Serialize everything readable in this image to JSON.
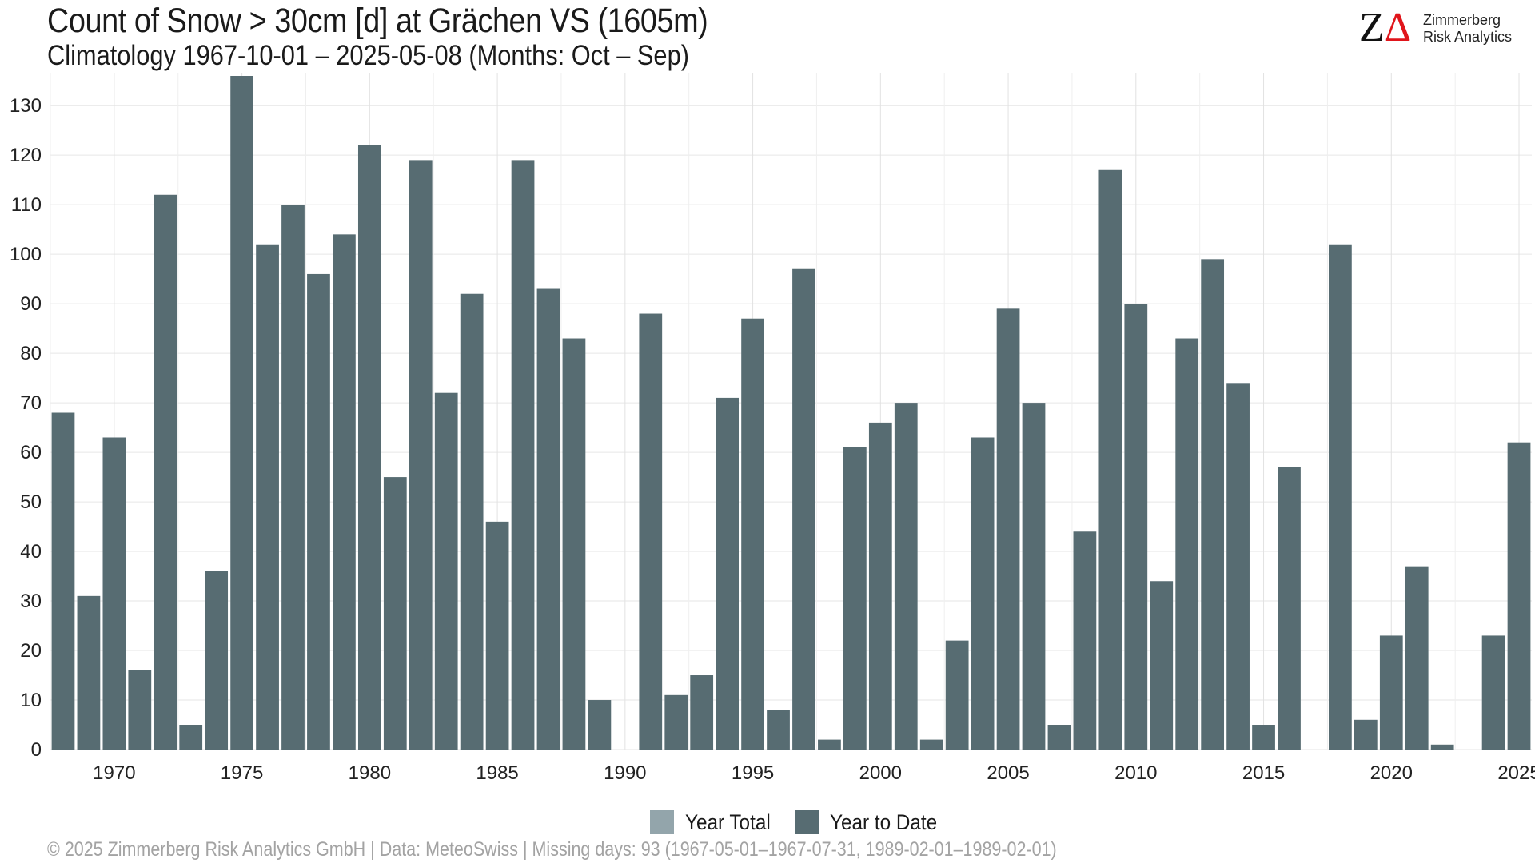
{
  "header": {
    "title": "Count of Snow > 30cm [d] at Grächen  VS (1605m)",
    "subtitle": "Climatology 1967-10-01 – 2025-05-08 (Months: Oct – Sep)"
  },
  "logo": {
    "mark_z": "Z",
    "mark_delta": "Δ",
    "line1": "Zimmerberg",
    "line2": "Risk Analytics"
  },
  "legend": {
    "items": [
      {
        "label": "Year Total",
        "color": "#93a5ab"
      },
      {
        "label": "Year to Date",
        "color": "#576c72"
      }
    ]
  },
  "footer": {
    "text": "©  2025 Zimmerberg Risk Analytics GmbH | Data: MeteoSwiss | Missing days: 93 (1967-05-01–1967-07-31, 1989-02-01–1989-02-01)"
  },
  "chart_data": {
    "type": "bar",
    "title": "Count of Snow > 30cm [d] at Grächen  VS (1605m)",
    "xlabel": "",
    "ylabel": "",
    "x": [
      1968,
      1969,
      1970,
      1971,
      1972,
      1973,
      1974,
      1975,
      1976,
      1977,
      1978,
      1979,
      1980,
      1981,
      1982,
      1983,
      1984,
      1985,
      1986,
      1987,
      1988,
      1989,
      1990,
      1991,
      1992,
      1993,
      1994,
      1995,
      1996,
      1997,
      1998,
      1999,
      2000,
      2001,
      2002,
      2003,
      2004,
      2005,
      2006,
      2007,
      2008,
      2009,
      2010,
      2011,
      2012,
      2013,
      2014,
      2015,
      2016,
      2017,
      2018,
      2019,
      2020,
      2021,
      2022,
      2023,
      2024,
      2025
    ],
    "series": [
      {
        "name": "Year to Date",
        "color": "#576c72",
        "values": [
          68,
          31,
          63,
          16,
          112,
          5,
          36,
          136,
          102,
          110,
          96,
          104,
          122,
          55,
          119,
          72,
          92,
          46,
          119,
          93,
          83,
          10,
          0,
          88,
          11,
          15,
          71,
          87,
          8,
          97,
          2,
          61,
          66,
          70,
          2,
          22,
          63,
          89,
          70,
          5,
          44,
          117,
          90,
          34,
          83,
          99,
          74,
          5,
          57,
          0,
          102,
          6,
          23,
          37,
          1,
          0,
          23,
          62
        ]
      }
    ],
    "x_ticks": [
      1970,
      1975,
      1980,
      1985,
      1990,
      1995,
      2000,
      2005,
      2010,
      2015,
      2020,
      2025
    ],
    "y_ticks": [
      0,
      10,
      20,
      30,
      40,
      50,
      60,
      70,
      80,
      90,
      100,
      110,
      120,
      130
    ],
    "xlim": [
      1967.5,
      2025.5
    ],
    "ylim": [
      0,
      136
    ],
    "grid": true,
    "legend_position": "bottom"
  }
}
